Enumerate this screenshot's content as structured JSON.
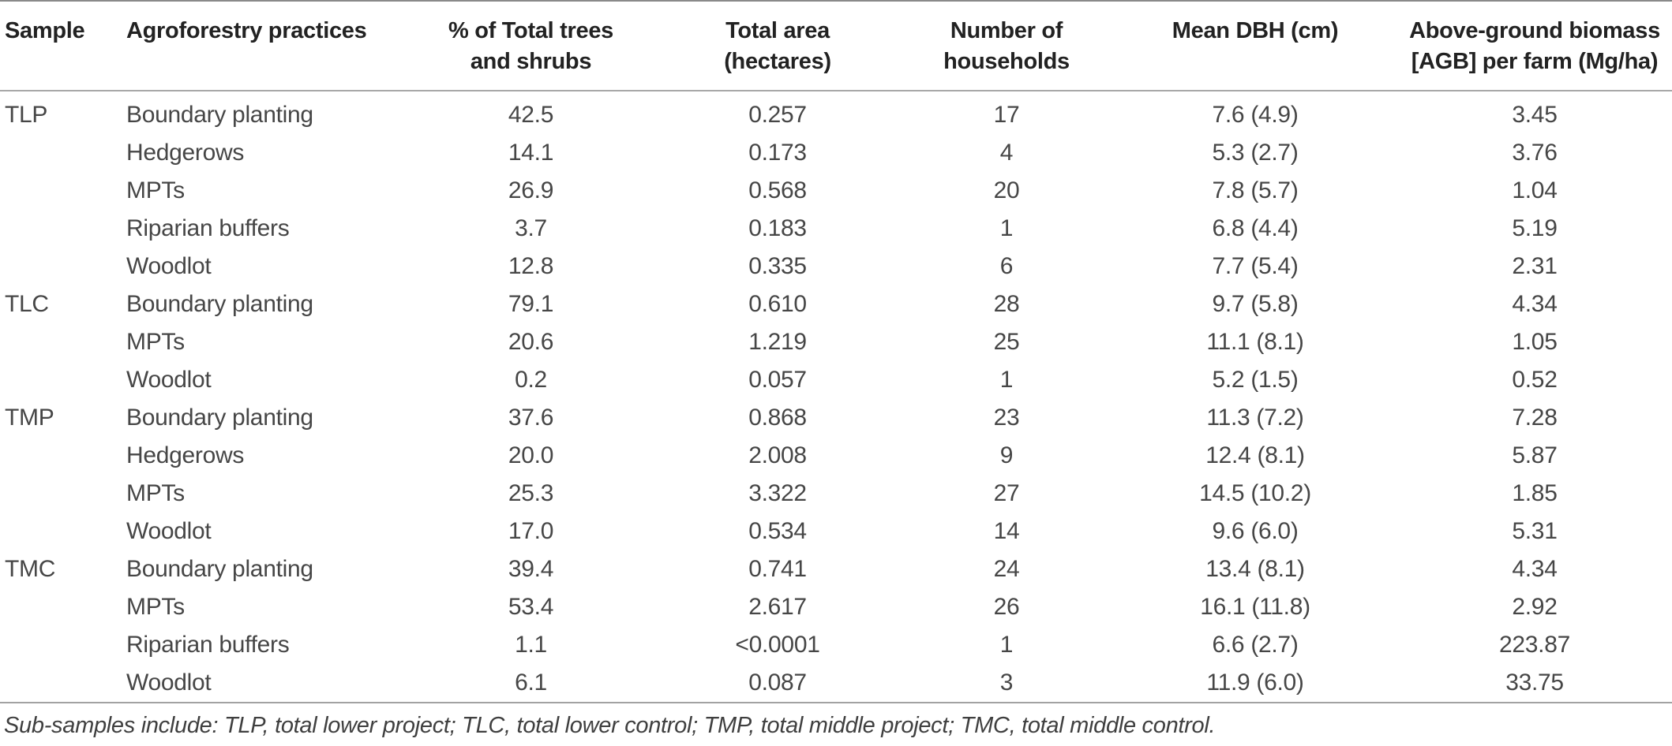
{
  "table": {
    "headers": [
      {
        "line1": "Sample",
        "line2": ""
      },
      {
        "line1": "Agroforestry practices",
        "line2": ""
      },
      {
        "line1": "% of Total trees",
        "line2": "and shrubs"
      },
      {
        "line1": "Total area",
        "line2": "(hectares)"
      },
      {
        "line1": "Number of",
        "line2": "households"
      },
      {
        "line1": "Mean DBH (cm)",
        "line2": ""
      },
      {
        "line1": "Above-ground biomass",
        "line2": "[AGB] per farm (Mg/ha)"
      }
    ],
    "rows": [
      {
        "sample": "TLP",
        "practice": "Boundary planting",
        "pct": "42.5",
        "area": "0.257",
        "households": "17",
        "dbh": "7.6 (4.9)",
        "agb": "3.45"
      },
      {
        "sample": "",
        "practice": "Hedgerows",
        "pct": "14.1",
        "area": "0.173",
        "households": "4",
        "dbh": "5.3 (2.7)",
        "agb": "3.76"
      },
      {
        "sample": "",
        "practice": "MPTs",
        "pct": "26.9",
        "area": "0.568",
        "households": "20",
        "dbh": "7.8 (5.7)",
        "agb": "1.04"
      },
      {
        "sample": "",
        "practice": "Riparian buffers",
        "pct": "3.7",
        "area": "0.183",
        "households": "1",
        "dbh": "6.8 (4.4)",
        "agb": "5.19"
      },
      {
        "sample": "",
        "practice": "Woodlot",
        "pct": "12.8",
        "area": "0.335",
        "households": "6",
        "dbh": "7.7 (5.4)",
        "agb": "2.31"
      },
      {
        "sample": "TLC",
        "practice": "Boundary planting",
        "pct": "79.1",
        "area": "0.610",
        "households": "28",
        "dbh": "9.7 (5.8)",
        "agb": "4.34"
      },
      {
        "sample": "",
        "practice": "MPTs",
        "pct": "20.6",
        "area": "1.219",
        "households": "25",
        "dbh": "11.1 (8.1)",
        "agb": "1.05"
      },
      {
        "sample": "",
        "practice": "Woodlot",
        "pct": "0.2",
        "area": "0.057",
        "households": "1",
        "dbh": "5.2 (1.5)",
        "agb": "0.52"
      },
      {
        "sample": "TMP",
        "practice": "Boundary planting",
        "pct": "37.6",
        "area": "0.868",
        "households": "23",
        "dbh": "11.3 (7.2)",
        "agb": "7.28"
      },
      {
        "sample": "",
        "practice": "Hedgerows",
        "pct": "20.0",
        "area": "2.008",
        "households": "9",
        "dbh": "12.4 (8.1)",
        "agb": "5.87"
      },
      {
        "sample": "",
        "practice": "MPTs",
        "pct": "25.3",
        "area": "3.322",
        "households": "27",
        "dbh": "14.5 (10.2)",
        "agb": "1.85"
      },
      {
        "sample": "",
        "practice": "Woodlot",
        "pct": "17.0",
        "area": "0.534",
        "households": "14",
        "dbh": "9.6 (6.0)",
        "agb": "5.31"
      },
      {
        "sample": "TMC",
        "practice": "Boundary planting",
        "pct": "39.4",
        "area": "0.741",
        "households": "24",
        "dbh": "13.4 (8.1)",
        "agb": "4.34"
      },
      {
        "sample": "",
        "practice": "MPTs",
        "pct": "53.4",
        "area": "2.617",
        "households": "26",
        "dbh": "16.1 (11.8)",
        "agb": "2.92"
      },
      {
        "sample": "",
        "practice": "Riparian buffers",
        "pct": "1.1",
        "area": "<0.0001",
        "households": "1",
        "dbh": "6.6 (2.7)",
        "agb": "223.87"
      },
      {
        "sample": "",
        "practice": "Woodlot",
        "pct": "6.1",
        "area": "0.087",
        "households": "3",
        "dbh": "11.9 (6.0)",
        "agb": "33.75"
      }
    ],
    "footnote": "Sub-samples include: TLP, total lower project; TLC, total lower control; TMP, total middle project; TMC, total middle control."
  }
}
